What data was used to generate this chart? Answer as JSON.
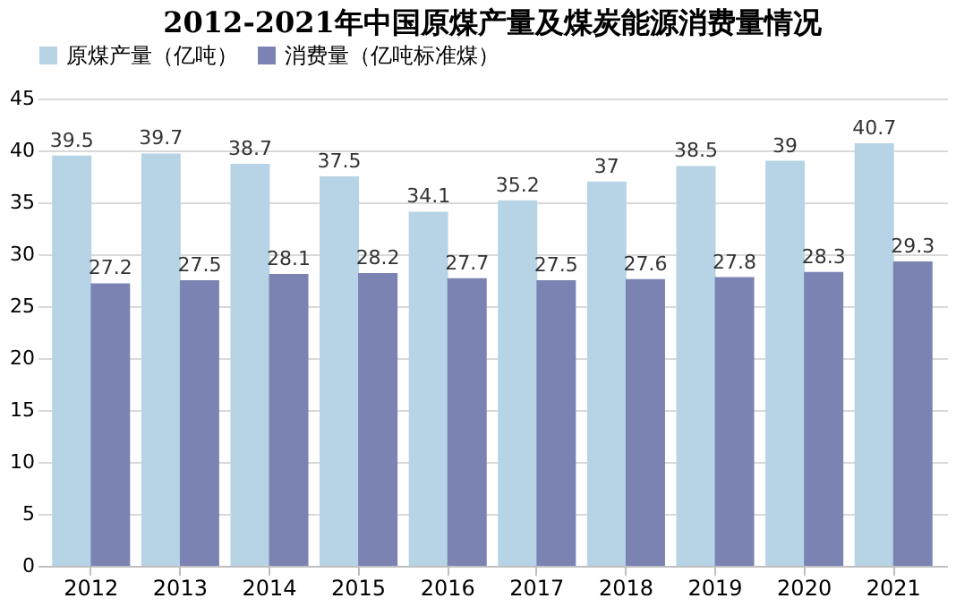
{
  "chart_data": {
    "type": "bar",
    "title": "2012-2021年中国原煤产量及煤炭能源消费量情况",
    "categories": [
      "2012",
      "2013",
      "2014",
      "2015",
      "2016",
      "2017",
      "2018",
      "2019",
      "2020",
      "2021"
    ],
    "series": [
      {
        "name": "原煤产量（亿吨）",
        "color": "#b7d4e6",
        "values": [
          39.5,
          39.7,
          38.7,
          37.5,
          34.1,
          35.2,
          37,
          38.5,
          39,
          40.7
        ]
      },
      {
        "name": "消费量（亿吨标准煤）",
        "color": "#7b83b3",
        "values": [
          27.2,
          27.5,
          28.1,
          28.2,
          27.7,
          27.5,
          27.6,
          27.8,
          28.3,
          29.3
        ]
      }
    ],
    "ylim": [
      0,
      45
    ],
    "yticks": [
      0,
      5,
      10,
      15,
      20,
      25,
      30,
      35,
      40,
      45
    ],
    "grid": "y",
    "legend": "top",
    "data_labels": true
  }
}
